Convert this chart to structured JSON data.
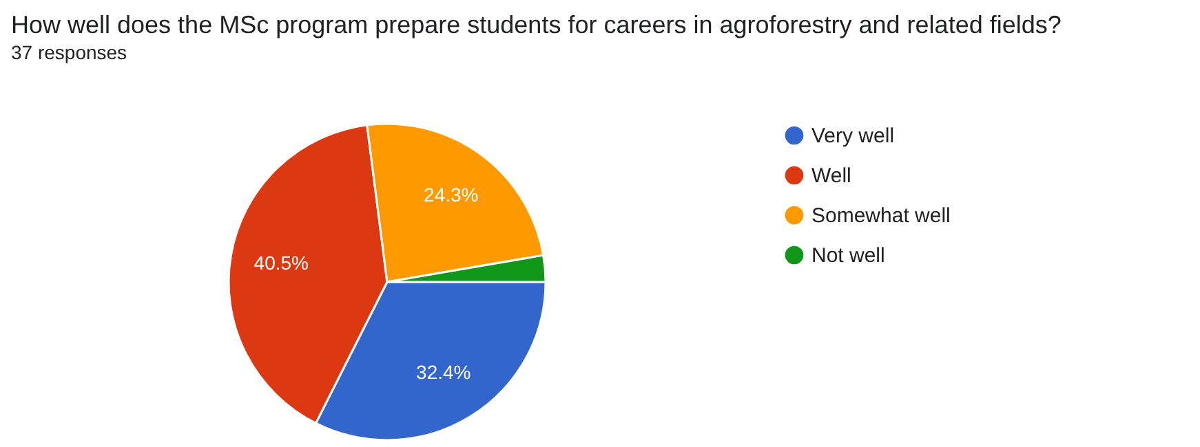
{
  "chart_data": {
    "type": "pie",
    "title": "How well does the MSc program prepare students for careers in agroforestry and related fields?",
    "subtitle": "37 responses",
    "categories": [
      "Very well",
      "Well",
      "Somewhat well",
      "Not well"
    ],
    "values": [
      32.4,
      40.5,
      24.3,
      2.7
    ],
    "colors": [
      "#3366cc",
      "#dc3912",
      "#ff9900",
      "#109618"
    ],
    "value_labels": [
      "32.4%",
      "40.5%",
      "24.3%",
      null
    ],
    "legend": "right"
  }
}
